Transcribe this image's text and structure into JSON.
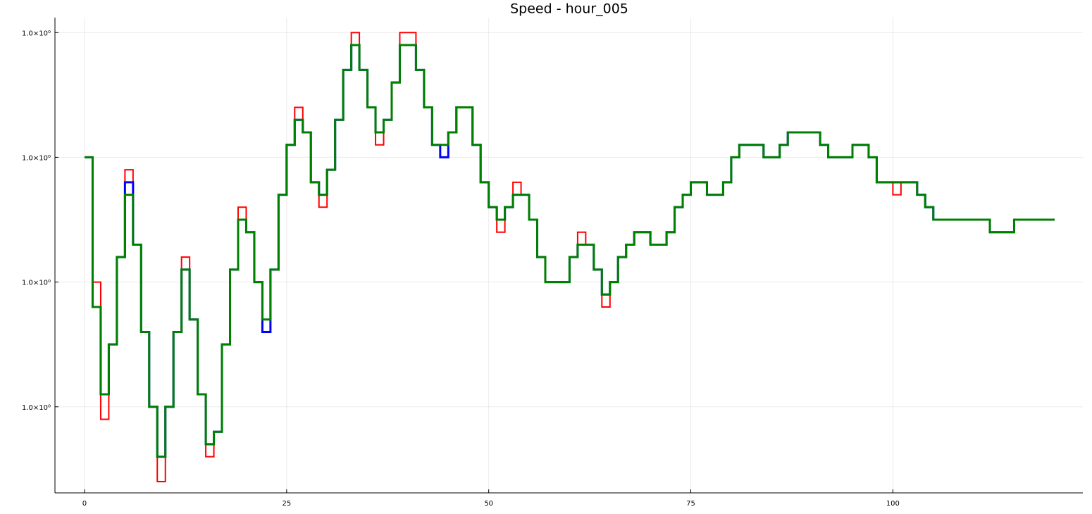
{
  "chart_data": {
    "type": "step-line",
    "title": "Speed - hour_005",
    "x": [
      0,
      1,
      2,
      3,
      4,
      5,
      6,
      7,
      8,
      9,
      10,
      11,
      12,
      13,
      14,
      15,
      16,
      17,
      18,
      19,
      20,
      21,
      22,
      23,
      24,
      25,
      26,
      27,
      28,
      29,
      30,
      31,
      32,
      33,
      34,
      35,
      36,
      37,
      38,
      39,
      40,
      41,
      42,
      43,
      44,
      45,
      46,
      47,
      48,
      49,
      50,
      51,
      52,
      53,
      54,
      55,
      56,
      57,
      58,
      59,
      60,
      61,
      62,
      63,
      64,
      65,
      66,
      67,
      68,
      69,
      70,
      71,
      72,
      73,
      74,
      75,
      76,
      77,
      78,
      79,
      80,
      81,
      82,
      83,
      84,
      85,
      86,
      87,
      88,
      89,
      90,
      91,
      92,
      93,
      94,
      95,
      96,
      97,
      98,
      99,
      100,
      101,
      102,
      103,
      104,
      105,
      106,
      107,
      108,
      109,
      110,
      111,
      112,
      113,
      114,
      115,
      116,
      117,
      118,
      119,
      120
    ],
    "series": [
      {
        "color": "#ff0000",
        "width": 2,
        "values": [
          0.999,
          0.998,
          0.9969,
          0.9975,
          0.9982,
          0.9989,
          0.9983,
          0.9976,
          0.997,
          0.9964,
          0.997,
          0.9976,
          0.9982,
          0.9977,
          0.9971,
          0.9966,
          0.9968,
          0.9975,
          0.9981,
          0.9986,
          0.9984,
          0.998,
          0.9976,
          0.9981,
          0.9987,
          0.9991,
          0.9994,
          0.9992,
          0.9988,
          0.9986,
          0.9989,
          0.9993,
          0.9997,
          1,
          0.9997,
          0.9994,
          0.9991,
          0.9993,
          0.9996,
          1,
          1,
          0.9997,
          0.9994,
          0.9991,
          0.9991,
          0.9992,
          0.9994,
          0.9994,
          0.9991,
          0.9988,
          0.9986,
          0.9984,
          0.9986,
          0.9988,
          0.9987,
          0.9985,
          0.9982,
          0.998,
          0.998,
          0.998,
          0.9982,
          0.9984,
          0.9983,
          0.9981,
          0.9978,
          0.998,
          0.9982,
          0.9983,
          0.9984,
          0.9984,
          0.9983,
          0.9983,
          0.9984,
          0.9986,
          0.9987,
          0.9988,
          0.9988,
          0.9987,
          0.9987,
          0.9988,
          0.999,
          0.9991,
          0.9991,
          0.9991,
          0.999,
          0.999,
          0.9991,
          0.9992,
          0.9992,
          0.9992,
          0.9992,
          0.9991,
          0.999,
          0.999,
          0.999,
          0.9991,
          0.9991,
          0.999,
          0.9988,
          0.9988,
          0.9987,
          0.9988,
          0.9988,
          0.9987,
          0.9986,
          0.9985,
          0.9985,
          0.9985,
          0.9985,
          0.9985,
          0.9985,
          0.9985,
          0.9984,
          0.9984,
          0.9984,
          0.9985,
          0.9985,
          0.9985,
          0.9985,
          0.9985,
          0.9985
        ]
      },
      {
        "color": "#0000ff",
        "width": 3,
        "values": [
          0.999,
          0.9978,
          0.9971,
          0.9975,
          0.9982,
          0.9988,
          0.9983,
          0.9976,
          0.997,
          0.9966,
          0.997,
          0.9976,
          0.9981,
          0.9977,
          0.9971,
          0.9967,
          0.9968,
          0.9975,
          0.9981,
          0.9985,
          0.9984,
          0.998,
          0.9976,
          0.9981,
          0.9987,
          0.9991,
          0.9993,
          0.9992,
          0.9988,
          0.9987,
          0.9989,
          0.9993,
          0.9997,
          0.9999,
          0.9997,
          0.9994,
          0.9992,
          0.9993,
          0.9996,
          0.9999,
          0.9999,
          0.9997,
          0.9994,
          0.9991,
          0.999,
          0.9992,
          0.9994,
          0.9994,
          0.9991,
          0.9988,
          0.9986,
          0.9985,
          0.9986,
          0.9987,
          0.9987,
          0.9985,
          0.9982,
          0.998,
          0.998,
          0.998,
          0.9982,
          0.9983,
          0.9983,
          0.9981,
          0.9979,
          0.998,
          0.9982,
          0.9983,
          0.9984,
          0.9984,
          0.9983,
          0.9983,
          0.9984,
          0.9986,
          0.9987,
          0.9988,
          0.9988,
          0.9987,
          0.9987,
          0.9988,
          0.999,
          0.9991,
          0.9991,
          0.9991,
          0.999,
          0.999,
          0.9991,
          0.9992,
          0.9992,
          0.9992,
          0.9992,
          0.9991,
          0.999,
          0.999,
          0.999,
          0.9991,
          0.9991,
          0.999,
          0.9988,
          0.9988,
          0.9988,
          0.9988,
          0.9988,
          0.9987,
          0.9986,
          0.9985,
          0.9985,
          0.9985,
          0.9985,
          0.9985,
          0.9985,
          0.9985,
          0.9984,
          0.9984,
          0.9984,
          0.9985,
          0.9985,
          0.9985,
          0.9985,
          0.9985,
          0.9985
        ]
      },
      {
        "color": "#008000",
        "width": 3,
        "values": [
          0.999,
          0.9978,
          0.9971,
          0.9975,
          0.9982,
          0.9987,
          0.9983,
          0.9976,
          0.997,
          0.9966,
          0.997,
          0.9976,
          0.9981,
          0.9977,
          0.9971,
          0.9967,
          0.9968,
          0.9975,
          0.9981,
          0.9985,
          0.9984,
          0.998,
          0.9977,
          0.9981,
          0.9987,
          0.9991,
          0.9993,
          0.9992,
          0.9988,
          0.9987,
          0.9989,
          0.9993,
          0.9997,
          0.9999,
          0.9997,
          0.9994,
          0.9992,
          0.9993,
          0.9996,
          0.9999,
          0.9999,
          0.9997,
          0.9994,
          0.9991,
          0.9991,
          0.9992,
          0.9994,
          0.9994,
          0.9991,
          0.9988,
          0.9986,
          0.9985,
          0.9986,
          0.9987,
          0.9987,
          0.9985,
          0.9982,
          0.998,
          0.998,
          0.998,
          0.9982,
          0.9983,
          0.9983,
          0.9981,
          0.9979,
          0.998,
          0.9982,
          0.9983,
          0.9984,
          0.9984,
          0.9983,
          0.9983,
          0.9984,
          0.9986,
          0.9987,
          0.9988,
          0.9988,
          0.9987,
          0.9987,
          0.9988,
          0.999,
          0.9991,
          0.9991,
          0.9991,
          0.999,
          0.999,
          0.9991,
          0.9992,
          0.9992,
          0.9992,
          0.9992,
          0.9991,
          0.999,
          0.999,
          0.999,
          0.9991,
          0.9991,
          0.999,
          0.9988,
          0.9988,
          0.9988,
          0.9988,
          0.9988,
          0.9987,
          0.9986,
          0.9985,
          0.9985,
          0.9985,
          0.9985,
          0.9985,
          0.9985,
          0.9985,
          0.9984,
          0.9984,
          0.9984,
          0.9985,
          0.9985,
          0.9985,
          0.9985,
          0.9985,
          0.9985
        ]
      }
    ],
    "xlim": [
      -3.66,
      123.5
    ],
    "xticks": [
      0,
      25,
      50,
      75,
      100
    ],
    "ylim": [
      0.99631,
      1.00012
    ],
    "yticks": [
      {
        "value": 0.997,
        "label": "1.0×10⁰"
      },
      {
        "value": 0.998,
        "label": "1.0×10⁰"
      },
      {
        "value": 0.999,
        "label": "1.0×10⁰"
      },
      {
        "value": 1.0,
        "label": "1.0×10⁰"
      }
    ],
    "grid": true
  }
}
